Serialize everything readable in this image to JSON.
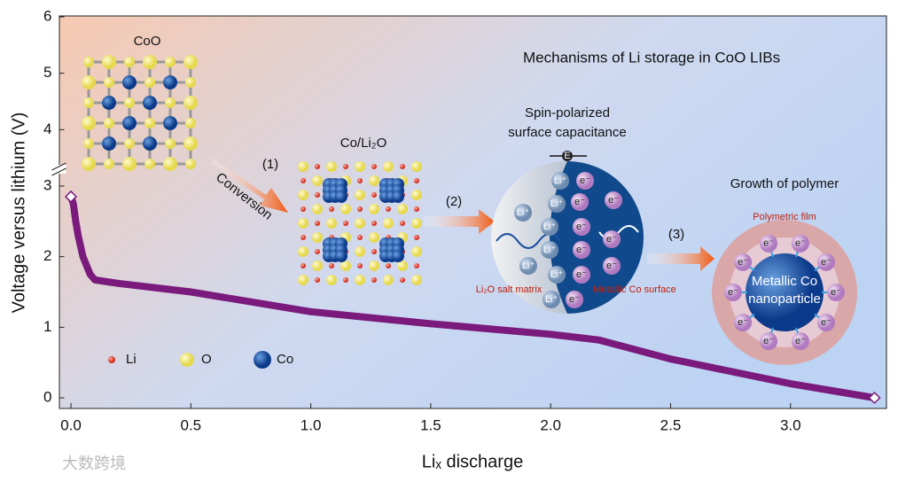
{
  "chart_data": {
    "type": "line",
    "title": "Mechanisms of Li storage in CoO LIBs",
    "x_label": "Liₓ discharge",
    "y_label": "Voltage versus lithium (V)",
    "x": [
      0,
      0.01,
      0.02,
      0.03,
      0.05,
      0.08,
      0.1,
      0.2,
      0.5,
      1.0,
      1.5,
      2.0,
      2.2,
      2.5,
      3.0,
      3.35
    ],
    "values": [
      2.85,
      2.75,
      2.5,
      2.3,
      2.0,
      1.75,
      1.67,
      1.62,
      1.5,
      1.22,
      1.05,
      0.9,
      0.82,
      0.55,
      0.2,
      0.0
    ],
    "color": "#7a1a7c",
    "xlim": [
      -0.05,
      3.4
    ],
    "xticks": [
      {
        "value": 0,
        "label": "0.0"
      },
      0.5,
      {
        "value": 1,
        "label": "1.0"
      },
      1.5,
      {
        "value": 2,
        "label": "2.0"
      },
      2.5,
      {
        "value": 3,
        "label": "3.0"
      }
    ],
    "ylim": [
      0,
      6
    ],
    "yticks": [
      0,
      1,
      2,
      3,
      4,
      5,
      6
    ],
    "ybreak": 3,
    "annotations": [
      "CoO",
      "Co/Li₂O",
      "(1)",
      "Conversion",
      "(2)",
      "Spin-polarized",
      "surface capacitance",
      "(3)",
      "Growth of polymer",
      "Polymetric film",
      "Metallic Co",
      "nanoparticle",
      "Li₂O salt matrix",
      "Metallic Co surface",
      "Li⁺",
      "e⁻",
      "E"
    ],
    "legend": [
      "Li",
      "O",
      "Co"
    ],
    "watermark": "大数跨境"
  }
}
